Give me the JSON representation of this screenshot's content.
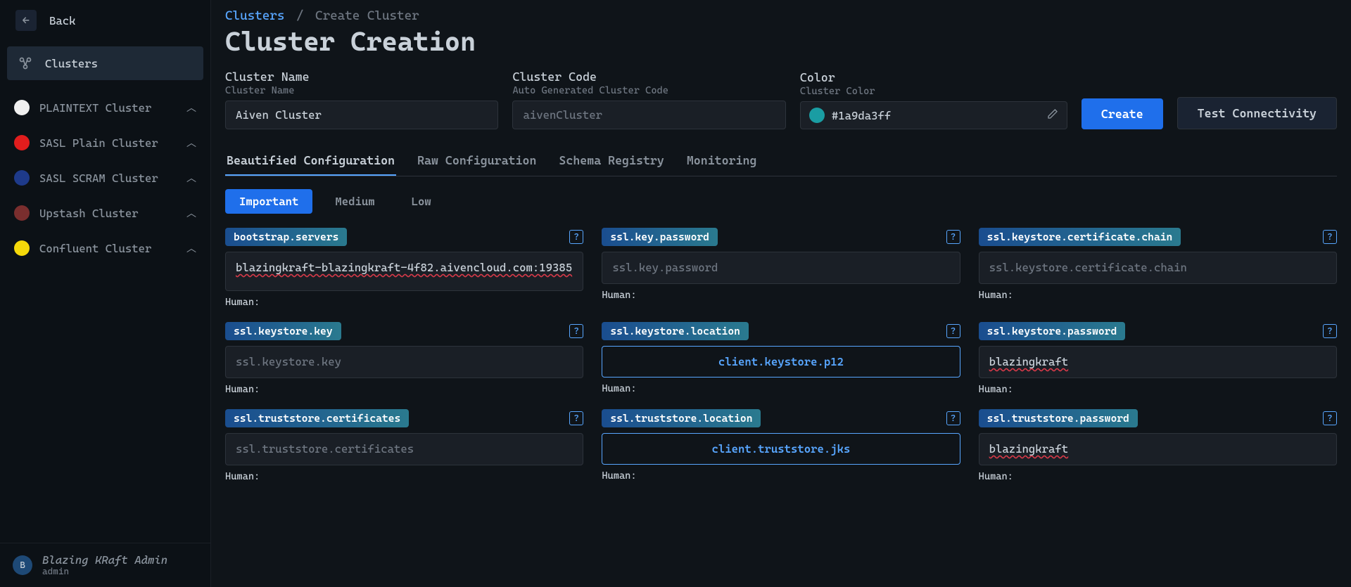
{
  "colors": {
    "accent": "#1f6feb",
    "link": "#58a6ff",
    "bg": "#0f1419",
    "panel": "#1a1f26"
  },
  "sidebar": {
    "back_label": "Back",
    "nav": {
      "clusters_label": "Clusters"
    },
    "clusters": [
      {
        "label": "PLAINTEXT Cluster",
        "color": "#f0f0f0"
      },
      {
        "label": "SASL Plain Cluster",
        "color": "#e11d1d"
      },
      {
        "label": "SASL SCRAM Cluster",
        "color": "#1e3a8a"
      },
      {
        "label": "Upstash Cluster",
        "color": "#7a2e2e"
      },
      {
        "label": "Confluent Cluster",
        "color": "#f5d90a"
      }
    ],
    "user": {
      "avatar_letter": "B",
      "name": "Blazing KRaft Admin",
      "role": "admin"
    }
  },
  "breadcrumb": {
    "root": "Clusters",
    "current": "Create Cluster"
  },
  "page_title": "Cluster Creation",
  "form": {
    "cluster_name": {
      "label": "Cluster Name",
      "sublabel": "Cluster Name",
      "value": "Aiven Cluster"
    },
    "cluster_code": {
      "label": "Cluster Code",
      "sublabel": "Auto Generated Cluster Code",
      "placeholder": "aivenCluster"
    },
    "color": {
      "label": "Color",
      "sublabel": "Cluster Color",
      "value": "#1a9da3ff",
      "swatch": "#1a9da3"
    },
    "create_btn": "Create",
    "test_btn": "Test Connectivity"
  },
  "tabs": [
    {
      "label": "Beautified Configuration",
      "active": true
    },
    {
      "label": "Raw Configuration",
      "active": false
    },
    {
      "label": "Schema Registry",
      "active": false
    },
    {
      "label": "Monitoring",
      "active": false
    }
  ],
  "priority": [
    {
      "label": "Important",
      "active": true
    },
    {
      "label": "Medium",
      "active": false
    },
    {
      "label": "Low",
      "active": false
    }
  ],
  "config": [
    {
      "key": "bootstrap.servers",
      "value": "blazingkraft-blazingkraft-4f82.aivencloud.com:19385",
      "placeholder": "",
      "type": "text",
      "tall": true,
      "spellmark": true
    },
    {
      "key": "ssl.key.password",
      "value": "",
      "placeholder": "ssl.key.password",
      "type": "text"
    },
    {
      "key": "ssl.keystore.certificate.chain",
      "value": "",
      "placeholder": "ssl.keystore.certificate.chain",
      "type": "text"
    },
    {
      "key": "ssl.keystore.key",
      "value": "",
      "placeholder": "ssl.keystore.key",
      "type": "text"
    },
    {
      "key": "ssl.keystore.location",
      "value": "client.keystore.p12",
      "placeholder": "",
      "type": "file"
    },
    {
      "key": "ssl.keystore.password",
      "value": "blazingkraft",
      "placeholder": "",
      "type": "text",
      "spellmark": true
    },
    {
      "key": "ssl.truststore.certificates",
      "value": "",
      "placeholder": "ssl.truststore.certificates",
      "type": "text"
    },
    {
      "key": "ssl.truststore.location",
      "value": "client.truststore.jks",
      "placeholder": "",
      "type": "file"
    },
    {
      "key": "ssl.truststore.password",
      "value": "blazingkraft",
      "placeholder": "",
      "type": "text",
      "spellmark": true
    }
  ]
}
